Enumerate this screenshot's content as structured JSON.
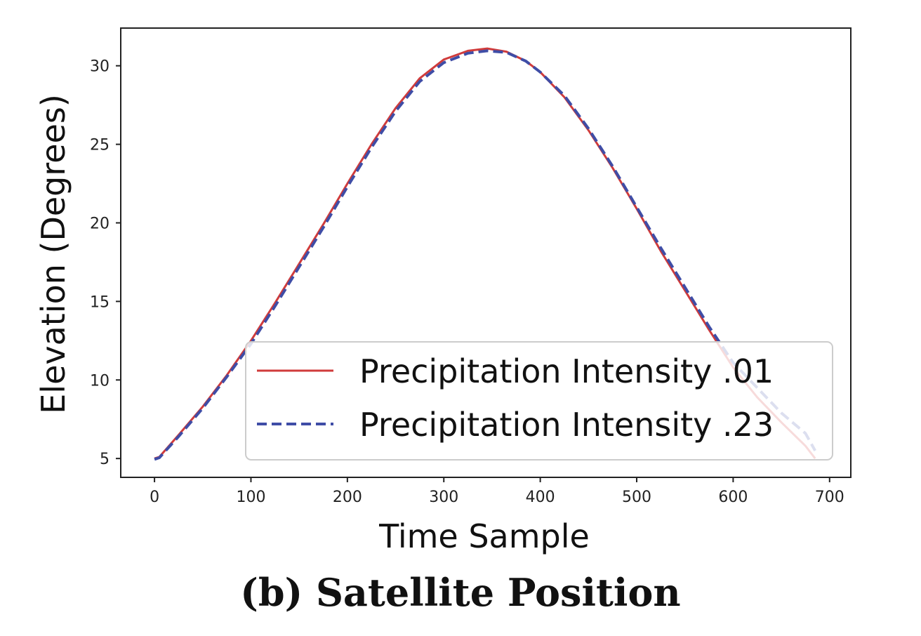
{
  "caption": "(b) Satellite Position",
  "chart_data": {
    "type": "line",
    "title": "",
    "xlabel": "Time Sample",
    "ylabel": "Elevation (Degrees)",
    "xlim": [
      -35,
      722
    ],
    "ylim": [
      3.8,
      32.4
    ],
    "xticks": [
      0,
      100,
      200,
      300,
      400,
      500,
      600,
      700
    ],
    "yticks": [
      5,
      10,
      15,
      20,
      25,
      30
    ],
    "grid": false,
    "legend_position": "lower-right",
    "series": [
      {
        "name": "Precipitation Intensity .01",
        "color": "#d03b3b",
        "style": "solid",
        "x": [
          0,
          5,
          25,
          50,
          75,
          100,
          125,
          150,
          175,
          200,
          225,
          250,
          275,
          300,
          325,
          345,
          365,
          385,
          400,
          425,
          450,
          475,
          500,
          525,
          550,
          575,
          600,
          625,
          650,
          675,
          685
        ],
        "y": [
          5.0,
          5.1,
          6.5,
          8.3,
          10.3,
          12.5,
          14.9,
          17.4,
          19.9,
          22.5,
          25.0,
          27.3,
          29.2,
          30.4,
          30.95,
          31.1,
          30.9,
          30.3,
          29.6,
          28.0,
          25.9,
          23.5,
          20.9,
          18.2,
          15.7,
          13.2,
          10.8,
          8.9,
          7.3,
          5.8,
          5.0
        ]
      },
      {
        "name": "Precipitation Intensity .23",
        "color": "#3f4da6",
        "style": "dashed",
        "x": [
          0,
          5,
          25,
          50,
          75,
          100,
          125,
          150,
          175,
          200,
          225,
          250,
          275,
          300,
          325,
          345,
          365,
          385,
          400,
          425,
          450,
          475,
          500,
          525,
          550,
          575,
          600,
          625,
          650,
          675,
          685
        ],
        "y": [
          4.95,
          5.05,
          6.4,
          8.2,
          10.2,
          12.3,
          14.7,
          17.2,
          19.7,
          22.3,
          24.8,
          27.1,
          29.0,
          30.2,
          30.8,
          30.95,
          30.85,
          30.3,
          29.6,
          28.1,
          26.0,
          23.6,
          21.0,
          18.4,
          15.9,
          13.4,
          11.1,
          9.5,
          7.9,
          6.6,
          5.5
        ]
      }
    ]
  }
}
